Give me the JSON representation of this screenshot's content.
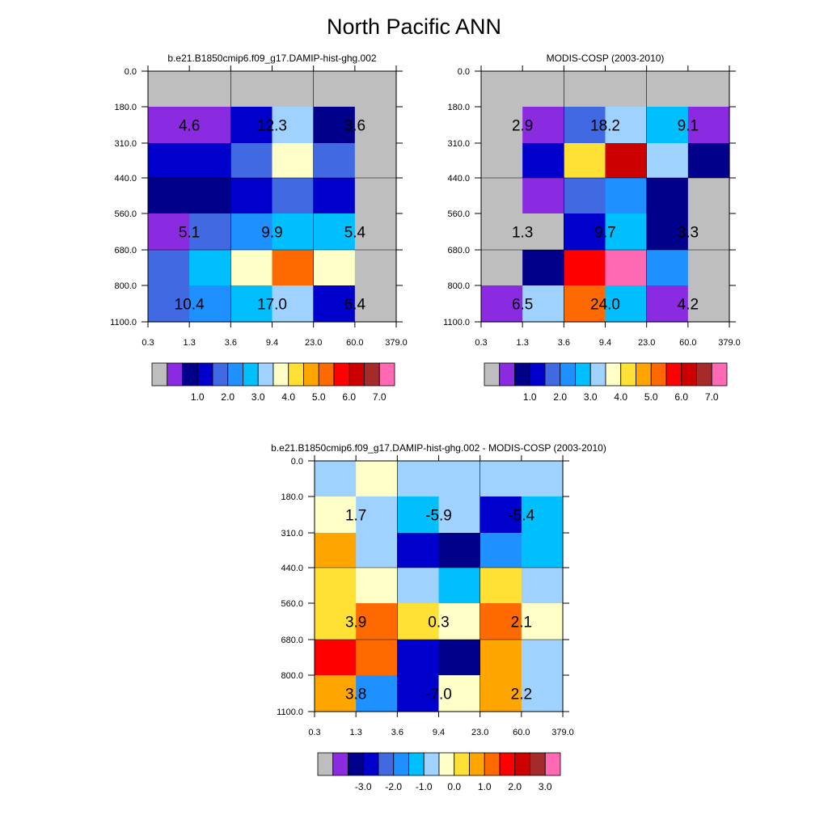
{
  "title": "North Pacific ANN",
  "chart_data": [
    {
      "type": "heatmap",
      "title": "b.e21.B1850cmip6.f09_g17.DAMIP-hist-ghg.002",
      "x_ticks": [
        "0.3",
        "1.3",
        "3.6",
        "9.4",
        "23.0",
        "60.0",
        "379.0"
      ],
      "y_ticks": [
        "0.0",
        "180.0",
        "310.0",
        "440.0",
        "560.0",
        "680.0",
        "800.0",
        "1100.0"
      ],
      "grid": [
        [
          "#bebebe",
          "#bebebe",
          "#bebebe",
          "#bebebe",
          "#bebebe",
          "#bebebe"
        ],
        [
          "#8a2be2",
          "#8a2be2",
          "#0000cd",
          "#a0d2ff",
          "#00008b",
          "#bebebe"
        ],
        [
          "#0000cd",
          "#0000cd",
          "#4169e1",
          "#ffffc8",
          "#4169e1",
          "#bebebe"
        ],
        [
          "#00008b",
          "#00008b",
          "#0000cd",
          "#4169e1",
          "#0000cd",
          "#bebebe"
        ],
        [
          "#8a2be2",
          "#4169e1",
          "#1e90ff",
          "#00bfff",
          "#00bfff",
          "#bebebe"
        ],
        [
          "#4169e1",
          "#00bfff",
          "#ffffc8",
          "#ff6a00",
          "#ffffc8",
          "#bebebe"
        ],
        [
          "#4169e1",
          "#1e90ff",
          "#00bfff",
          "#a0d2ff",
          "#0000cd",
          "#bebebe"
        ]
      ],
      "cell_labels": [
        {
          "row": 1,
          "col": 1,
          "text": "4.6"
        },
        {
          "row": 1,
          "col": 3,
          "text": "12.3"
        },
        {
          "row": 1,
          "col": 5,
          "text": "3.6"
        },
        {
          "row": 4,
          "col": 1,
          "text": "5.1"
        },
        {
          "row": 4,
          "col": 3,
          "text": "9.9"
        },
        {
          "row": 4,
          "col": 5,
          "text": "5.4"
        },
        {
          "row": 6,
          "col": 1,
          "text": "10.4"
        },
        {
          "row": 6,
          "col": 3,
          "text": "17.0"
        },
        {
          "row": 6,
          "col": 5,
          "text": "6.4"
        }
      ],
      "colorbar": {
        "colors": [
          "#bebebe",
          "#8a2be2",
          "#00008b",
          "#0000cd",
          "#4169e1",
          "#1e90ff",
          "#00bfff",
          "#a0d2ff",
          "#ffffc8",
          "#ffe135",
          "#ffa500",
          "#ff6a00",
          "#ff0000",
          "#cd0000",
          "#a52a2a",
          "#ff69b4"
        ],
        "labels": [
          "1.0",
          "2.0",
          "3.0",
          "4.0",
          "5.0",
          "6.0",
          "7.0"
        ],
        "label_boundary_start": 3,
        "label_boundary_step": 2
      }
    },
    {
      "type": "heatmap",
      "title": "MODIS-COSP (2003-2010)",
      "x_ticks": [
        "0.3",
        "1.3",
        "3.6",
        "9.4",
        "23.0",
        "60.0",
        "379.0"
      ],
      "y_ticks": [
        "0.0",
        "180.0",
        "310.0",
        "440.0",
        "560.0",
        "680.0",
        "800.0",
        "1100.0"
      ],
      "grid": [
        [
          "#bebebe",
          "#bebebe",
          "#bebebe",
          "#bebebe",
          "#bebebe",
          "#bebebe"
        ],
        [
          "#bebebe",
          "#8a2be2",
          "#4169e1",
          "#a0d2ff",
          "#00bfff",
          "#8a2be2"
        ],
        [
          "#bebebe",
          "#0000cd",
          "#ffe135",
          "#cd0000",
          "#a0d2ff",
          "#00008b"
        ],
        [
          "#bebebe",
          "#8a2be2",
          "#4169e1",
          "#1e90ff",
          "#00008b",
          "#bebebe"
        ],
        [
          "#bebebe",
          "#bebebe",
          "#0000cd",
          "#00bfff",
          "#00008b",
          "#bebebe"
        ],
        [
          "#bebebe",
          "#00008b",
          "#ff0000",
          "#ff69b4",
          "#1e90ff",
          "#bebebe"
        ],
        [
          "#8a2be2",
          "#a0d2ff",
          "#ff6a00",
          "#00bfff",
          "#8a2be2",
          "#bebebe"
        ]
      ],
      "cell_labels": [
        {
          "row": 1,
          "col": 1,
          "text": "2.9"
        },
        {
          "row": 1,
          "col": 3,
          "text": "18.2"
        },
        {
          "row": 1,
          "col": 5,
          "text": "9.1"
        },
        {
          "row": 4,
          "col": 1,
          "text": "1.3"
        },
        {
          "row": 4,
          "col": 3,
          "text": "9.7"
        },
        {
          "row": 4,
          "col": 5,
          "text": "3.3"
        },
        {
          "row": 6,
          "col": 1,
          "text": "6.5"
        },
        {
          "row": 6,
          "col": 3,
          "text": "24.0"
        },
        {
          "row": 6,
          "col": 5,
          "text": "4.2"
        }
      ],
      "colorbar": {
        "colors": [
          "#bebebe",
          "#8a2be2",
          "#00008b",
          "#0000cd",
          "#4169e1",
          "#1e90ff",
          "#00bfff",
          "#a0d2ff",
          "#ffffc8",
          "#ffe135",
          "#ffa500",
          "#ff6a00",
          "#ff0000",
          "#cd0000",
          "#a52a2a",
          "#ff69b4"
        ],
        "labels": [
          "1.0",
          "2.0",
          "3.0",
          "4.0",
          "5.0",
          "6.0",
          "7.0"
        ],
        "label_boundary_start": 3,
        "label_boundary_step": 2
      }
    },
    {
      "type": "heatmap",
      "title": "b.e21.B1850cmip6.f09_g17.DAMIP-hist-ghg.002 - MODIS-COSP (2003-2010)",
      "x_ticks": [
        "0.3",
        "1.3",
        "3.6",
        "9.4",
        "23.0",
        "60.0",
        "379.0"
      ],
      "y_ticks": [
        "0.0",
        "180.0",
        "310.0",
        "440.0",
        "560.0",
        "680.0",
        "800.0",
        "1100.0"
      ],
      "grid": [
        [
          "#a0d2ff",
          "#ffffc8",
          "#a0d2ff",
          "#a0d2ff",
          "#a0d2ff",
          "#a0d2ff"
        ],
        [
          "#ffffc8",
          "#a0d2ff",
          "#00bfff",
          "#a0d2ff",
          "#0000cd",
          "#00bfff"
        ],
        [
          "#ffa500",
          "#a0d2ff",
          "#0000cd",
          "#00008b",
          "#1e90ff",
          "#00bfff"
        ],
        [
          "#ffe135",
          "#ffffc8",
          "#a0d2ff",
          "#00bfff",
          "#ffe135",
          "#a0d2ff"
        ],
        [
          "#ffe135",
          "#ff6a00",
          "#ffe135",
          "#ffffc8",
          "#ff6a00",
          "#ffffc8"
        ],
        [
          "#ff0000",
          "#ff6a00",
          "#0000cd",
          "#00008b",
          "#ffa500",
          "#a0d2ff"
        ],
        [
          "#ffa500",
          "#1e90ff",
          "#0000cd",
          "#ffffc8",
          "#ffa500",
          "#a0d2ff"
        ]
      ],
      "cell_labels": [
        {
          "row": 1,
          "col": 1,
          "text": "1.7"
        },
        {
          "row": 1,
          "col": 3,
          "text": "-5.9"
        },
        {
          "row": 1,
          "col": 5,
          "text": "-5.4"
        },
        {
          "row": 4,
          "col": 1,
          "text": "3.9"
        },
        {
          "row": 4,
          "col": 3,
          "text": "0.3"
        },
        {
          "row": 4,
          "col": 5,
          "text": "2.1"
        },
        {
          "row": 6,
          "col": 1,
          "text": "3.8"
        },
        {
          "row": 6,
          "col": 3,
          "text": "-7.0"
        },
        {
          "row": 6,
          "col": 5,
          "text": "2.2"
        }
      ],
      "colorbar": {
        "colors": [
          "#bebebe",
          "#8a2be2",
          "#00008b",
          "#0000cd",
          "#4169e1",
          "#1e90ff",
          "#00bfff",
          "#a0d2ff",
          "#ffffc8",
          "#ffe135",
          "#ffa500",
          "#ff6a00",
          "#ff0000",
          "#cd0000",
          "#a52a2a",
          "#ff69b4"
        ],
        "labels": [
          "-3.0",
          "-2.0",
          "-1.0",
          "0.0",
          "1.0",
          "2.0",
          "3.0"
        ],
        "label_boundary_start": 3,
        "label_boundary_step": 2
      }
    }
  ]
}
